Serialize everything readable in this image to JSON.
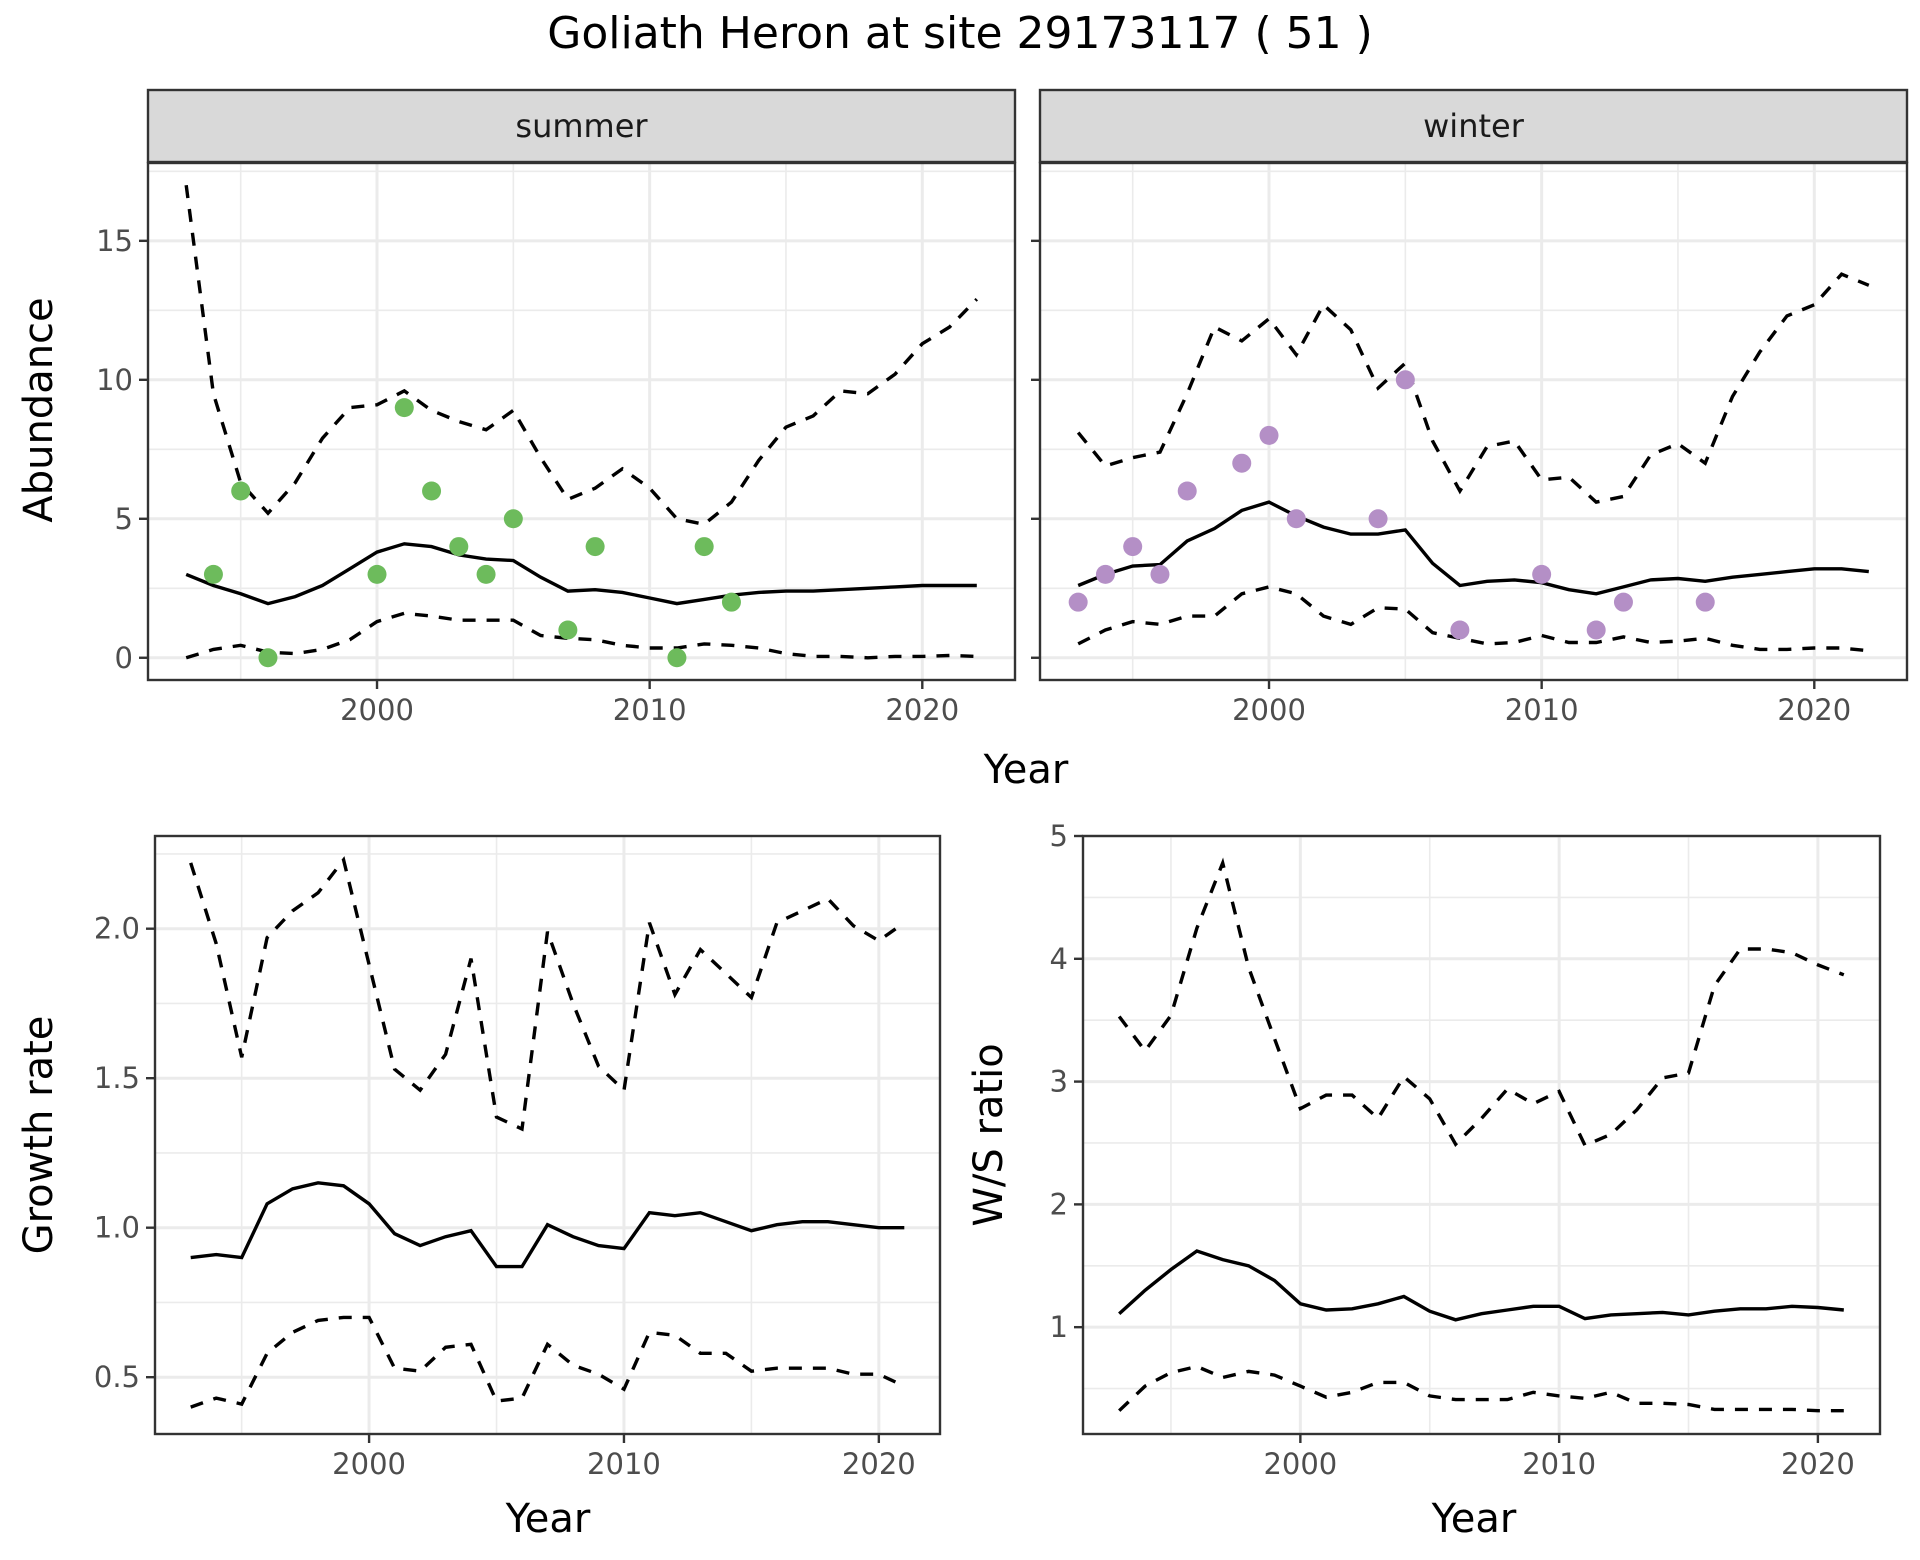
{
  "title": "Goliath Heron at site 29173117 ( 51 )",
  "chart_data": [
    {
      "id": "abundance",
      "type": "line",
      "facets": [
        "summer",
        "winter"
      ],
      "xlabel": "Year",
      "ylabel": "Abundance",
      "xlim": [
        1991.6,
        2023.4
      ],
      "ylim": [
        -0.8,
        17.8
      ],
      "xticks": [
        2000,
        2010,
        2020
      ],
      "yticks": [
        0,
        5,
        10,
        15
      ],
      "grid": true,
      "legend": "none",
      "panels": {
        "summer": {
          "label": "summer",
          "point_color": "#6dbb5c",
          "x": [
            1993,
            1994,
            1995,
            1996,
            1997,
            1998,
            1999,
            2000,
            2001,
            2002,
            2003,
            2004,
            2005,
            2006,
            2007,
            2008,
            2009,
            2010,
            2011,
            2012,
            2013,
            2014,
            2015,
            2016,
            2017,
            2018,
            2019,
            2020,
            2021,
            2022
          ],
          "mean": [
            3.0,
            2.6,
            2.3,
            1.95,
            2.2,
            2.6,
            3.2,
            3.8,
            4.1,
            4.0,
            3.7,
            3.55,
            3.5,
            2.9,
            2.4,
            2.45,
            2.35,
            2.15,
            1.95,
            2.1,
            2.25,
            2.35,
            2.4,
            2.4,
            2.45,
            2.5,
            2.55,
            2.6,
            2.6,
            2.6
          ],
          "upper": [
            17.0,
            9.5,
            6.3,
            5.2,
            6.3,
            7.9,
            9.0,
            9.1,
            9.6,
            8.9,
            8.5,
            8.2,
            8.9,
            7.2,
            5.7,
            6.1,
            6.8,
            6.1,
            5.0,
            4.8,
            5.6,
            7.1,
            8.3,
            8.7,
            9.6,
            9.5,
            10.2,
            11.3,
            11.9,
            12.9
          ],
          "lower": [
            0.0,
            0.3,
            0.45,
            0.2,
            0.15,
            0.3,
            0.65,
            1.3,
            1.6,
            1.5,
            1.35,
            1.35,
            1.35,
            0.8,
            0.7,
            0.65,
            0.45,
            0.35,
            0.35,
            0.5,
            0.45,
            0.35,
            0.15,
            0.05,
            0.05,
            0.0,
            0.05,
            0.05,
            0.08,
            0.05
          ],
          "observed": [
            {
              "x": 1994,
              "y": 3
            },
            {
              "x": 1995,
              "y": 6
            },
            {
              "x": 1996,
              "y": 0
            },
            {
              "x": 2000,
              "y": 3
            },
            {
              "x": 2001,
              "y": 9
            },
            {
              "x": 2002,
              "y": 6
            },
            {
              "x": 2003,
              "y": 4
            },
            {
              "x": 2004,
              "y": 3
            },
            {
              "x": 2005,
              "y": 5
            },
            {
              "x": 2007,
              "y": 1
            },
            {
              "x": 2008,
              "y": 4
            },
            {
              "x": 2011,
              "y": 0
            },
            {
              "x": 2012,
              "y": 4
            },
            {
              "x": 2013,
              "y": 2
            }
          ]
        },
        "winter": {
          "label": "winter",
          "point_color": "#b48fc6",
          "x": [
            1993,
            1994,
            1995,
            1996,
            1997,
            1998,
            1999,
            2000,
            2001,
            2002,
            2003,
            2004,
            2005,
            2006,
            2007,
            2008,
            2009,
            2010,
            2011,
            2012,
            2013,
            2014,
            2015,
            2016,
            2017,
            2018,
            2019,
            2020,
            2021,
            2022
          ],
          "mean": [
            2.6,
            3.0,
            3.3,
            3.35,
            4.2,
            4.65,
            5.3,
            5.6,
            5.1,
            4.7,
            4.45,
            4.45,
            4.6,
            3.4,
            2.6,
            2.75,
            2.8,
            2.7,
            2.45,
            2.3,
            2.55,
            2.8,
            2.85,
            2.75,
            2.9,
            3.0,
            3.1,
            3.2,
            3.2,
            3.1
          ],
          "upper": [
            8.1,
            6.9,
            7.2,
            7.4,
            9.5,
            11.9,
            11.4,
            12.2,
            10.9,
            12.7,
            11.8,
            9.7,
            10.6,
            7.8,
            6.0,
            7.6,
            7.8,
            6.4,
            6.5,
            5.6,
            5.8,
            7.3,
            7.7,
            7.0,
            9.4,
            11.0,
            12.3,
            12.7,
            13.8,
            13.4
          ],
          "lower": [
            0.5,
            1.0,
            1.3,
            1.2,
            1.5,
            1.5,
            2.3,
            2.55,
            2.3,
            1.5,
            1.2,
            1.8,
            1.75,
            0.9,
            0.7,
            0.5,
            0.55,
            0.8,
            0.55,
            0.55,
            0.75,
            0.55,
            0.6,
            0.7,
            0.45,
            0.3,
            0.3,
            0.35,
            0.35,
            0.25
          ],
          "observed": [
            {
              "x": 1993,
              "y": 2
            },
            {
              "x": 1994,
              "y": 3
            },
            {
              "x": 1995,
              "y": 4
            },
            {
              "x": 1996,
              "y": 3
            },
            {
              "x": 1997,
              "y": 6
            },
            {
              "x": 1999,
              "y": 7
            },
            {
              "x": 2000,
              "y": 8
            },
            {
              "x": 2001,
              "y": 5
            },
            {
              "x": 2004,
              "y": 5
            },
            {
              "x": 2005,
              "y": 10
            },
            {
              "x": 2007,
              "y": 1
            },
            {
              "x": 2010,
              "y": 3
            },
            {
              "x": 2012,
              "y": 1
            },
            {
              "x": 2013,
              "y": 2
            },
            {
              "x": 2016,
              "y": 2
            }
          ]
        }
      }
    },
    {
      "id": "growth",
      "type": "line",
      "xlabel": "Year",
      "ylabel": "Growth rate",
      "xlim": [
        1991.6,
        2022.4
      ],
      "ylim": [
        0.31,
        2.31
      ],
      "xticks": [
        2000,
        2010,
        2020
      ],
      "yticks": [
        0.5,
        1.0,
        1.5,
        2.0
      ],
      "ytick_labels": [
        "0.5",
        "1.0",
        "1.5",
        "2.0"
      ],
      "grid": true,
      "legend": "none",
      "x": [
        1993,
        1994,
        1995,
        1996,
        1997,
        1998,
        1999,
        2000,
        2001,
        2002,
        2003,
        2004,
        2005,
        2006,
        2007,
        2008,
        2009,
        2010,
        2011,
        2012,
        2013,
        2014,
        2015,
        2016,
        2017,
        2018,
        2019,
        2020,
        2021
      ],
      "mean": [
        0.9,
        0.91,
        0.9,
        1.08,
        1.13,
        1.15,
        1.14,
        1.08,
        0.98,
        0.94,
        0.97,
        0.99,
        0.87,
        0.87,
        1.01,
        0.97,
        0.94,
        0.93,
        1.05,
        1.04,
        1.05,
        1.02,
        0.99,
        1.01,
        1.02,
        1.02,
        1.01,
        1.0,
        1.0
      ],
      "upper": [
        2.22,
        1.95,
        1.57,
        1.97,
        2.06,
        2.12,
        2.23,
        1.88,
        1.53,
        1.46,
        1.58,
        1.9,
        1.37,
        1.33,
        1.99,
        1.75,
        1.54,
        1.46,
        2.02,
        1.78,
        1.93,
        1.85,
        1.77,
        2.02,
        2.06,
        2.1,
        2.01,
        1.96,
        2.02
      ],
      "lower": [
        0.4,
        0.43,
        0.41,
        0.58,
        0.65,
        0.69,
        0.7,
        0.7,
        0.53,
        0.52,
        0.6,
        0.61,
        0.42,
        0.43,
        0.61,
        0.54,
        0.51,
        0.46,
        0.65,
        0.64,
        0.58,
        0.58,
        0.52,
        0.53,
        0.53,
        0.53,
        0.51,
        0.51,
        0.47
      ]
    },
    {
      "id": "ws_ratio",
      "type": "line",
      "xlabel": "Year",
      "ylabel": "W/S ratio",
      "xlim": [
        1991.6,
        2022.4
      ],
      "ylim": [
        0.13,
        5.0
      ],
      "xticks": [
        2000,
        2010,
        2020
      ],
      "yticks": [
        1,
        2,
        3,
        4,
        5
      ],
      "grid": true,
      "legend": "none",
      "x": [
        1993,
        1994,
        1995,
        1996,
        1997,
        1998,
        1999,
        2000,
        2001,
        2002,
        2003,
        2004,
        2005,
        2006,
        2007,
        2008,
        2009,
        2010,
        2011,
        2012,
        2013,
        2014,
        2015,
        2016,
        2017,
        2018,
        2019,
        2020,
        2021
      ],
      "mean": [
        1.11,
        1.3,
        1.47,
        1.62,
        1.55,
        1.5,
        1.38,
        1.19,
        1.14,
        1.15,
        1.19,
        1.25,
        1.13,
        1.06,
        1.11,
        1.14,
        1.17,
        1.17,
        1.07,
        1.1,
        1.11,
        1.12,
        1.1,
        1.13,
        1.15,
        1.15,
        1.17,
        1.16,
        1.14
      ],
      "upper": [
        3.53,
        3.25,
        3.54,
        4.25,
        4.78,
        3.93,
        3.35,
        2.78,
        2.89,
        2.89,
        2.7,
        3.04,
        2.86,
        2.49,
        2.7,
        2.94,
        2.82,
        2.92,
        2.48,
        2.57,
        2.77,
        3.03,
        3.07,
        3.78,
        4.08,
        4.08,
        4.05,
        3.95,
        3.87
      ],
      "lower": [
        0.32,
        0.52,
        0.63,
        0.68,
        0.59,
        0.64,
        0.61,
        0.52,
        0.43,
        0.47,
        0.55,
        0.55,
        0.44,
        0.41,
        0.41,
        0.41,
        0.47,
        0.44,
        0.42,
        0.47,
        0.38,
        0.38,
        0.37,
        0.33,
        0.33,
        0.33,
        0.33,
        0.32,
        0.32
      ]
    }
  ]
}
